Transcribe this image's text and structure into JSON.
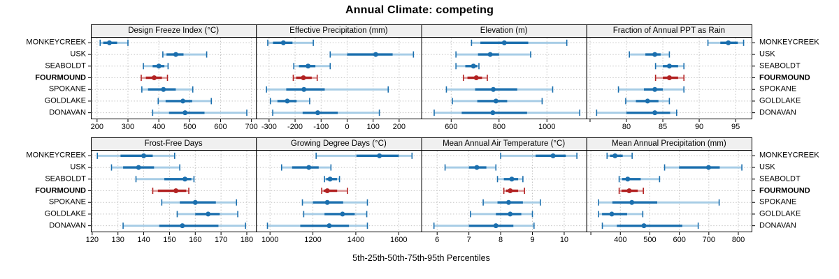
{
  "title": "Annual Climate: competing",
  "footer": "5th-25th-50th-75th-95th Percentiles",
  "percentile_labels": [
    "5th",
    "25th",
    "50th",
    "75th",
    "95th"
  ],
  "colors": {
    "blue_dark": "#1b6fae",
    "blue_light": "#a8cde6",
    "red_dark": "#b22222",
    "red_light": "#e0a1a1",
    "header_bg": "#f0f0f0",
    "grid": "#c4c4c4",
    "border": "#000000"
  },
  "stations": [
    {
      "name": "MONKEYCREEK",
      "highlight": false
    },
    {
      "name": "USK",
      "highlight": false
    },
    {
      "name": "SEABOLDT",
      "highlight": false
    },
    {
      "name": "FOURMOUND",
      "highlight": true
    },
    {
      "name": "SPOKANE",
      "highlight": false
    },
    {
      "name": "GOLDLAKE",
      "highlight": false
    },
    {
      "name": "DONAVAN",
      "highlight": false
    }
  ],
  "chart_data": [
    {
      "type": "scatter",
      "title": "Design Freeze Index (°C)",
      "xlim": [
        180,
        715
      ],
      "tick_values": [
        200,
        300,
        400,
        500,
        600,
        700
      ],
      "tick_labels": [
        "200",
        "300",
        "400",
        "500",
        "600",
        "700"
      ],
      "series": [
        {
          "name": "MONKEYCREEK",
          "values": [
            210,
            220,
            240,
            265,
            300
          ]
        },
        {
          "name": "USK",
          "values": [
            413,
            425,
            455,
            480,
            555
          ]
        },
        {
          "name": "SEABOLDT",
          "values": [
            350,
            380,
            400,
            418,
            430
          ]
        },
        {
          "name": "FOURMOUND",
          "values": [
            343,
            358,
            385,
            410,
            428
          ]
        },
        {
          "name": "SPOKANE",
          "values": [
            345,
            365,
            415,
            455,
            510
          ]
        },
        {
          "name": "GOLDLAKE",
          "values": [
            398,
            422,
            478,
            508,
            570
          ]
        },
        {
          "name": "DONAVAN",
          "values": [
            380,
            433,
            485,
            548,
            685
          ]
        }
      ]
    },
    {
      "type": "scatter",
      "title": "Effective Precipitation (mm)",
      "xlim": [
        -350,
        285
      ],
      "tick_values": [
        -300,
        -200,
        -100,
        0,
        100,
        200
      ],
      "tick_labels": [
        "-300",
        "-200",
        "-100",
        "0",
        "100",
        "200"
      ],
      "series": [
        {
          "name": "MONKEYCREEK",
          "values": [
            -305,
            -285,
            -245,
            -210,
            -130
          ]
        },
        {
          "name": "USK",
          "values": [
            -65,
            0,
            110,
            175,
            255
          ]
        },
        {
          "name": "SEABOLDT",
          "values": [
            -205,
            -185,
            -150,
            -122,
            -65
          ]
        },
        {
          "name": "FOURMOUND",
          "values": [
            -207,
            -196,
            -168,
            -136,
            -115
          ]
        },
        {
          "name": "SPOKANE",
          "values": [
            -310,
            -234,
            -166,
            -86,
            158
          ]
        },
        {
          "name": "GOLDLAKE",
          "values": [
            -295,
            -268,
            -230,
            -194,
            -144
          ]
        },
        {
          "name": "DONAVAN",
          "values": [
            -286,
            -171,
            -113,
            -36,
            124
          ]
        }
      ]
    },
    {
      "type": "scatter",
      "title": "Elevation (m)",
      "xlim": [
        475,
        1165
      ],
      "tick_values": [
        600,
        800,
        1000
      ],
      "tick_labels": [
        "600",
        "800",
        "1000"
      ],
      "series": [
        {
          "name": "MONKEYCREEK",
          "values": [
            685,
            722,
            822,
            922,
            1083
          ]
        },
        {
          "name": "USK",
          "values": [
            620,
            712,
            763,
            800,
            932
          ]
        },
        {
          "name": "SEABOLDT",
          "values": [
            620,
            659,
            693,
            709,
            716
          ]
        },
        {
          "name": "FOURMOUND",
          "values": [
            651,
            668,
            705,
            729,
            751
          ]
        },
        {
          "name": "SPOKANE",
          "values": [
            580,
            700,
            776,
            876,
            1024
          ]
        },
        {
          "name": "GOLDLAKE",
          "values": [
            605,
            709,
            787,
            834,
            980
          ]
        },
        {
          "name": "DONAVAN",
          "values": [
            529,
            644,
            774,
            917,
            1137
          ]
        }
      ]
    },
    {
      "type": "scatter",
      "title": "Fraction of Annual PPT as Rain",
      "xlim": [
        74.5,
        97.2
      ],
      "tick_values": [
        75,
        80,
        85,
        90,
        95
      ],
      "tick_labels": [
        "",
        "80",
        "85",
        "90",
        "95"
      ],
      "series": [
        {
          "name": "MONKEYCREEK",
          "values": [
            91.2,
            92.9,
            94.0,
            95.3,
            96.1
          ]
        },
        {
          "name": "USK",
          "values": [
            80.4,
            82.6,
            83.9,
            84.7,
            85.9
          ]
        },
        {
          "name": "SEABOLDT",
          "values": [
            84.0,
            85.0,
            85.9,
            87.1,
            87.9
          ]
        },
        {
          "name": "FOURMOUND",
          "values": [
            84.0,
            85.0,
            85.9,
            87.1,
            87.9
          ]
        },
        {
          "name": "SPOKANE",
          "values": [
            78.9,
            82.4,
            83.9,
            85.0,
            87.9
          ]
        },
        {
          "name": "GOLDLAKE",
          "values": [
            79.9,
            81.3,
            82.9,
            84.4,
            85.9
          ]
        },
        {
          "name": "DONAVAN",
          "values": [
            75.9,
            80.0,
            83.9,
            86.0,
            86.9
          ]
        }
      ]
    },
    {
      "type": "scatter",
      "title": "Frost-Free Days",
      "xlim": [
        119.5,
        183.6
      ],
      "tick_values": [
        120,
        130,
        140,
        150,
        160,
        170,
        180
      ],
      "tick_labels": [
        "120",
        "130",
        "140",
        "150",
        "160",
        "170",
        "180"
      ],
      "series": [
        {
          "name": "MONKEYCREEK",
          "values": [
            122,
            131,
            140,
            143.5,
            152
          ]
        },
        {
          "name": "USK",
          "values": [
            127.5,
            132,
            138,
            144,
            154
          ]
        },
        {
          "name": "SEABOLDT",
          "values": [
            137,
            148,
            156,
            158.5,
            159.5
          ]
        },
        {
          "name": "FOURMOUND",
          "values": [
            143.5,
            145.5,
            152.5,
            156.5,
            157.5
          ]
        },
        {
          "name": "SPOKANE",
          "values": [
            147,
            154,
            160,
            168,
            176
          ]
        },
        {
          "name": "GOLDLAKE",
          "values": [
            153,
            160,
            165,
            169.5,
            176.5
          ]
        },
        {
          "name": "DONAVAN",
          "values": [
            132,
            146,
            155,
            169,
            179.5
          ]
        }
      ]
    },
    {
      "type": "scatter",
      "title": "Growing Degree Days (°C)",
      "xlim": [
        935,
        1705
      ],
      "tick_values": [
        1000,
        1200,
        1400,
        1600
      ],
      "tick_labels": [
        "1000",
        "1200",
        "1400",
        "1600"
      ],
      "series": [
        {
          "name": "MONKEYCREEK",
          "values": [
            1215,
            1403,
            1510,
            1600,
            1662
          ]
        },
        {
          "name": "USK",
          "values": [
            1054,
            1103,
            1181,
            1227,
            1284
          ]
        },
        {
          "name": "SEABOLDT",
          "values": [
            1254,
            1262,
            1280,
            1312,
            1324
          ]
        },
        {
          "name": "FOURMOUND",
          "values": [
            1241,
            1250,
            1267,
            1313,
            1361
          ]
        },
        {
          "name": "SPOKANE",
          "values": [
            1151,
            1200,
            1267,
            1341,
            1454
          ]
        },
        {
          "name": "GOLDLAKE",
          "values": [
            1157,
            1254,
            1338,
            1395,
            1451
          ]
        },
        {
          "name": "DONAVAN",
          "values": [
            988,
            1141,
            1276,
            1368,
            1454
          ]
        }
      ]
    },
    {
      "type": "scatter",
      "title": "Mean Annual Air Temperature (°C)",
      "xlim": [
        5.5,
        10.7
      ],
      "tick_values": [
        6,
        7,
        8,
        9,
        10
      ],
      "tick_labels": [
        "6",
        "7",
        "8",
        "9",
        "10"
      ],
      "series": [
        {
          "name": "MONKEYCREEK",
          "values": [
            8.0,
            9.1,
            9.65,
            10.05,
            10.4
          ]
        },
        {
          "name": "USK",
          "values": [
            6.25,
            7.0,
            7.25,
            7.55,
            7.85
          ]
        },
        {
          "name": "SEABOLDT",
          "values": [
            7.9,
            8.1,
            8.35,
            8.55,
            8.7
          ]
        },
        {
          "name": "FOURMOUND",
          "values": [
            8.1,
            8.17,
            8.3,
            8.55,
            8.75
          ]
        },
        {
          "name": "SPOKANE",
          "values": [
            7.45,
            7.9,
            8.25,
            8.7,
            9.25
          ]
        },
        {
          "name": "GOLDLAKE",
          "values": [
            7.05,
            7.85,
            8.3,
            8.65,
            9.0
          ]
        },
        {
          "name": "DONAVAN",
          "values": [
            5.9,
            7.0,
            7.85,
            8.4,
            9.05
          ]
        }
      ]
    },
    {
      "type": "scatter",
      "title": "Mean Annual Precipitation (mm)",
      "xlim": [
        285,
        845
      ],
      "tick_values": [
        300,
        400,
        500,
        600,
        700,
        800
      ],
      "tick_labels": [
        "",
        "400",
        "500",
        "600",
        "700",
        "800"
      ],
      "series": [
        {
          "name": "MONKEYCREEK",
          "values": [
            355,
            365,
            382,
            408,
            440
          ]
        },
        {
          "name": "USK",
          "values": [
            550,
            599,
            699,
            737,
            812
          ]
        },
        {
          "name": "SEABOLDT",
          "values": [
            396,
            406,
            425,
            469,
            533
          ]
        },
        {
          "name": "FOURMOUND",
          "values": [
            396,
            404,
            430,
            459,
            478
          ]
        },
        {
          "name": "SPOKANE",
          "values": [
            326,
            373,
            439,
            525,
            735
          ]
        },
        {
          "name": "GOLDLAKE",
          "values": [
            326,
            338,
            371,
            423,
            476
          ]
        },
        {
          "name": "DONAVAN",
          "values": [
            339,
            388,
            480,
            610,
            664
          ]
        }
      ]
    }
  ]
}
